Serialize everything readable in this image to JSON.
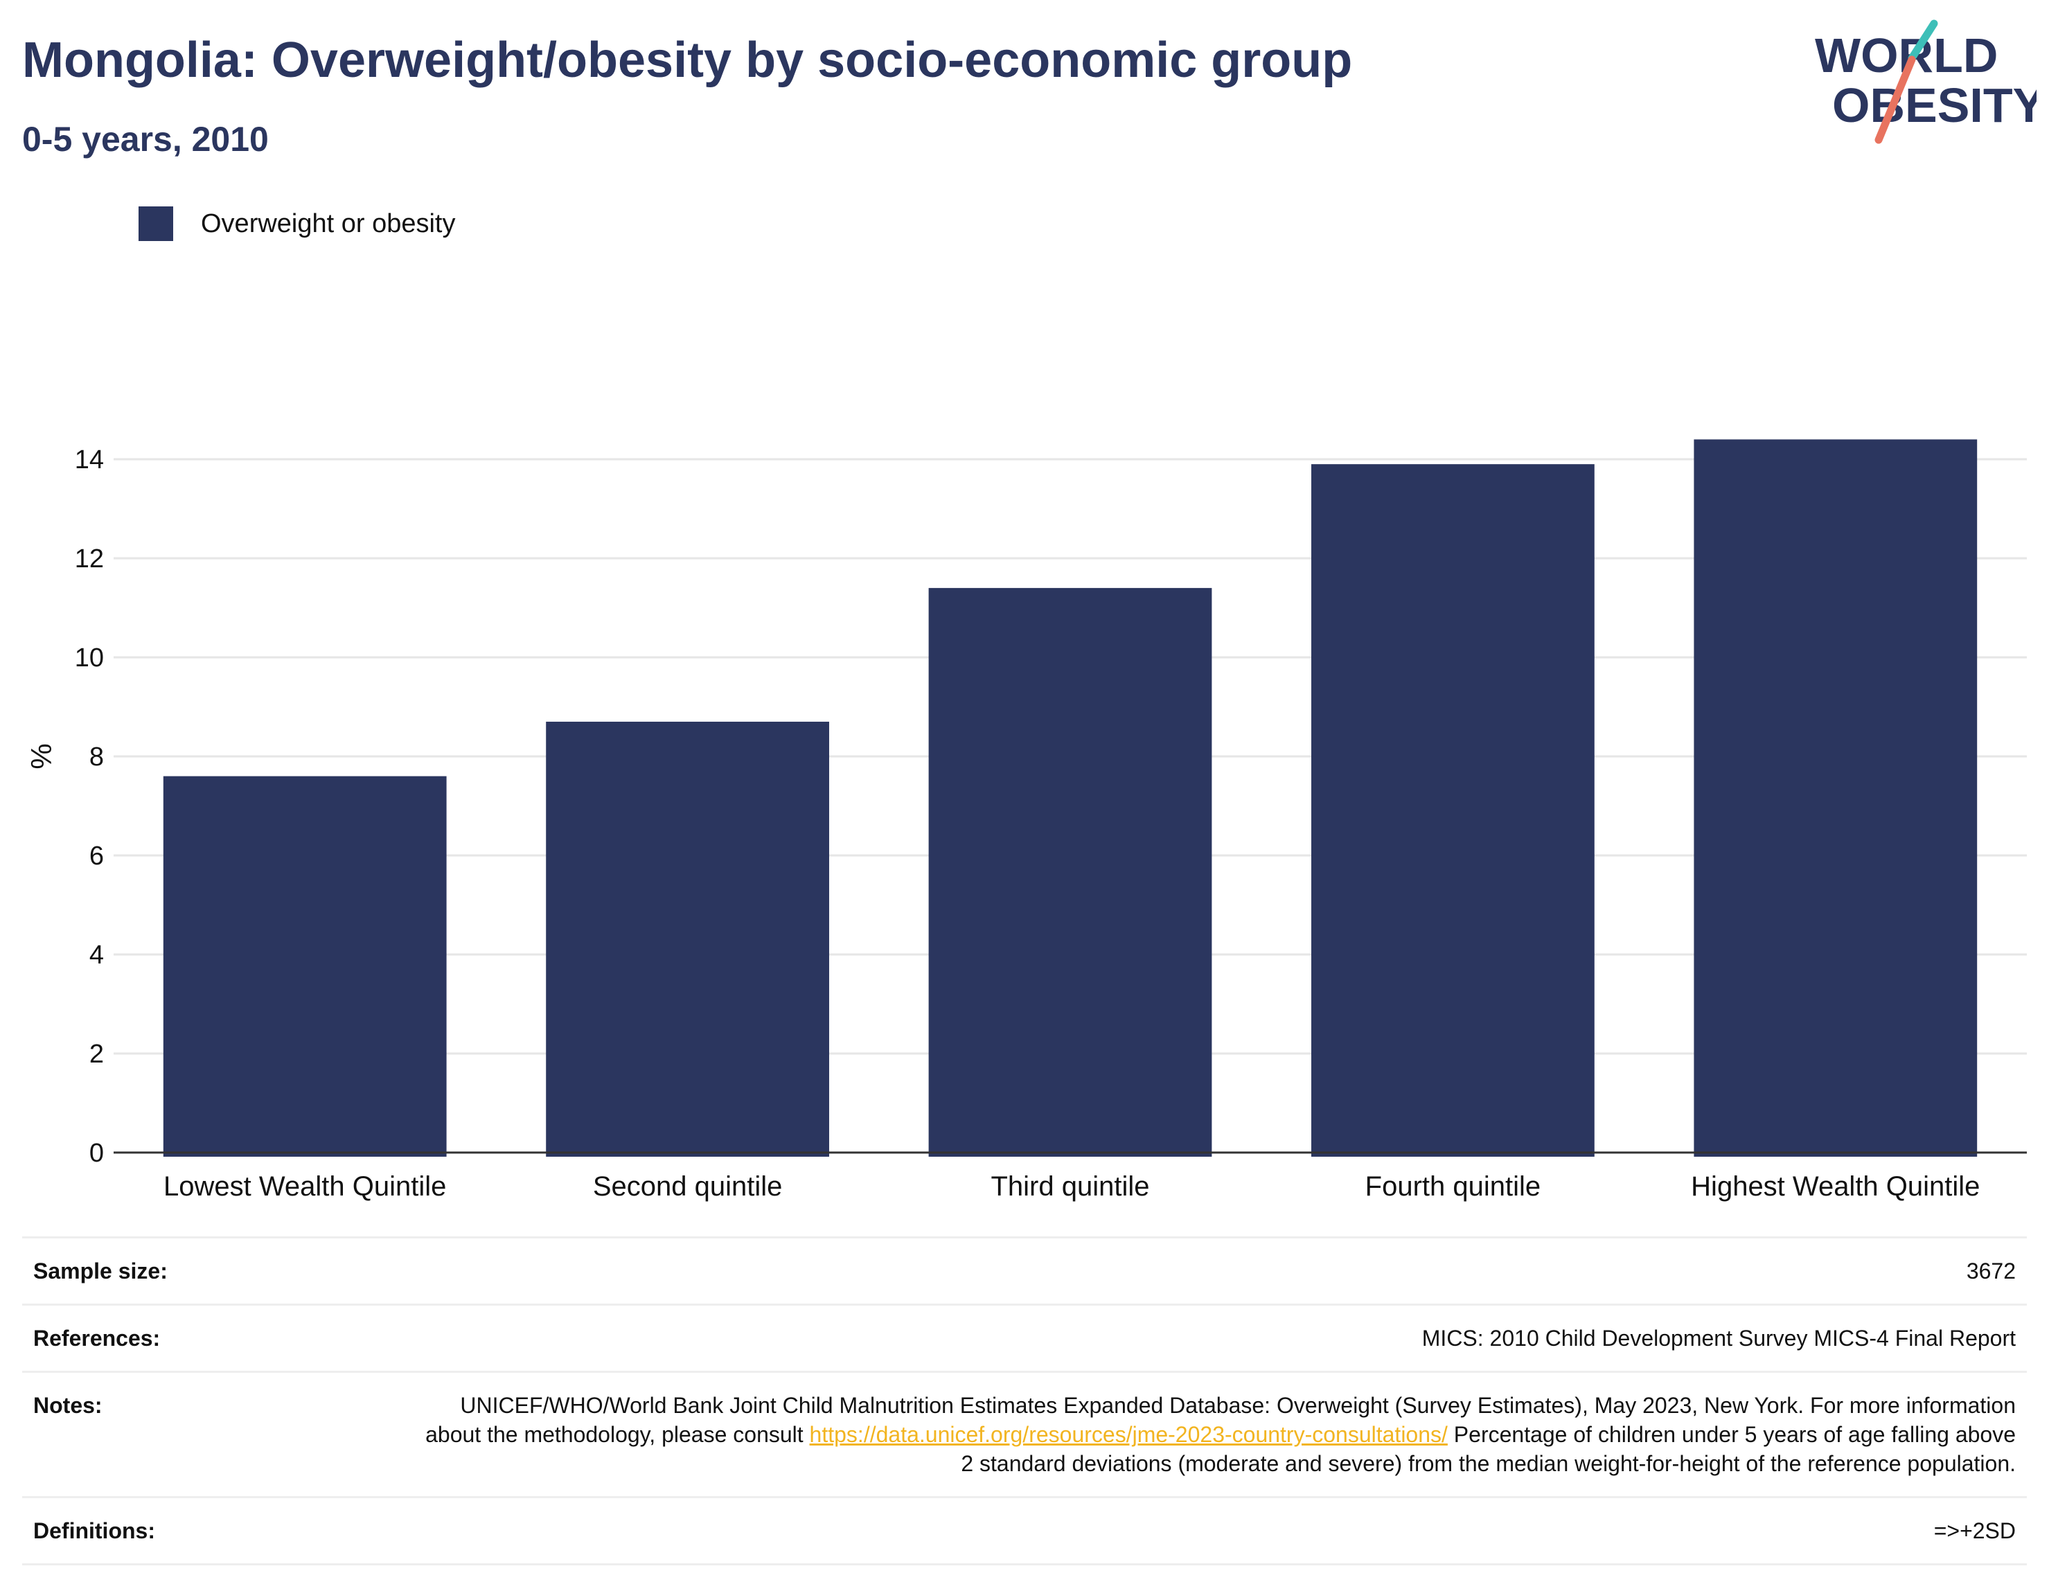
{
  "header": {
    "title": "Mongolia: Overweight/obesity by socio-economic group",
    "subtitle": "0-5 years, 2010"
  },
  "logo": {
    "line1": "WORLD",
    "line2": "OBESITY"
  },
  "colors": {
    "title": "#2b365f",
    "bar": "#2b365f",
    "logo_teal": "#3dbfb8",
    "logo_coral": "#e8735f",
    "link": "#f2b420",
    "grid": "#e6e6e6"
  },
  "chart_data": {
    "type": "bar",
    "categories": [
      "Lowest Wealth Quintile",
      "Second quintile",
      "Third quintile",
      "Fourth quintile",
      "Highest Wealth Quintile"
    ],
    "series": [
      {
        "name": "Overweight or obesity",
        "values": [
          7.6,
          8.7,
          11.4,
          13.9,
          14.4
        ]
      }
    ],
    "ylabel": "%",
    "ylim": [
      0,
      16
    ],
    "yticks": [
      0,
      2,
      4,
      6,
      8,
      10,
      12,
      14
    ],
    "grid": true,
    "legend": "top-left"
  },
  "info": {
    "sample_size": {
      "label": "Sample size:",
      "value": "3672"
    },
    "references": {
      "label": "References:",
      "value": "MICS: 2010 Child Development Survey MICS-4 Final Report"
    },
    "notes": {
      "label": "Notes:",
      "text_before": "UNICEF/WHO/World Bank Joint Child Malnutrition Estimates Expanded Database: Overweight (Survey Estimates), May 2023, New York. For more information about the methodology, please consult ",
      "link": "https://data.unicef.org/resources/jme-2023-country-consultations/",
      "text_after": " Percentage of children under 5 years of age falling above 2 standard deviations (moderate and severe) from the median weight-for-height of the reference population."
    },
    "definitions": {
      "label": "Definitions:",
      "value": "=>+2SD"
    }
  }
}
